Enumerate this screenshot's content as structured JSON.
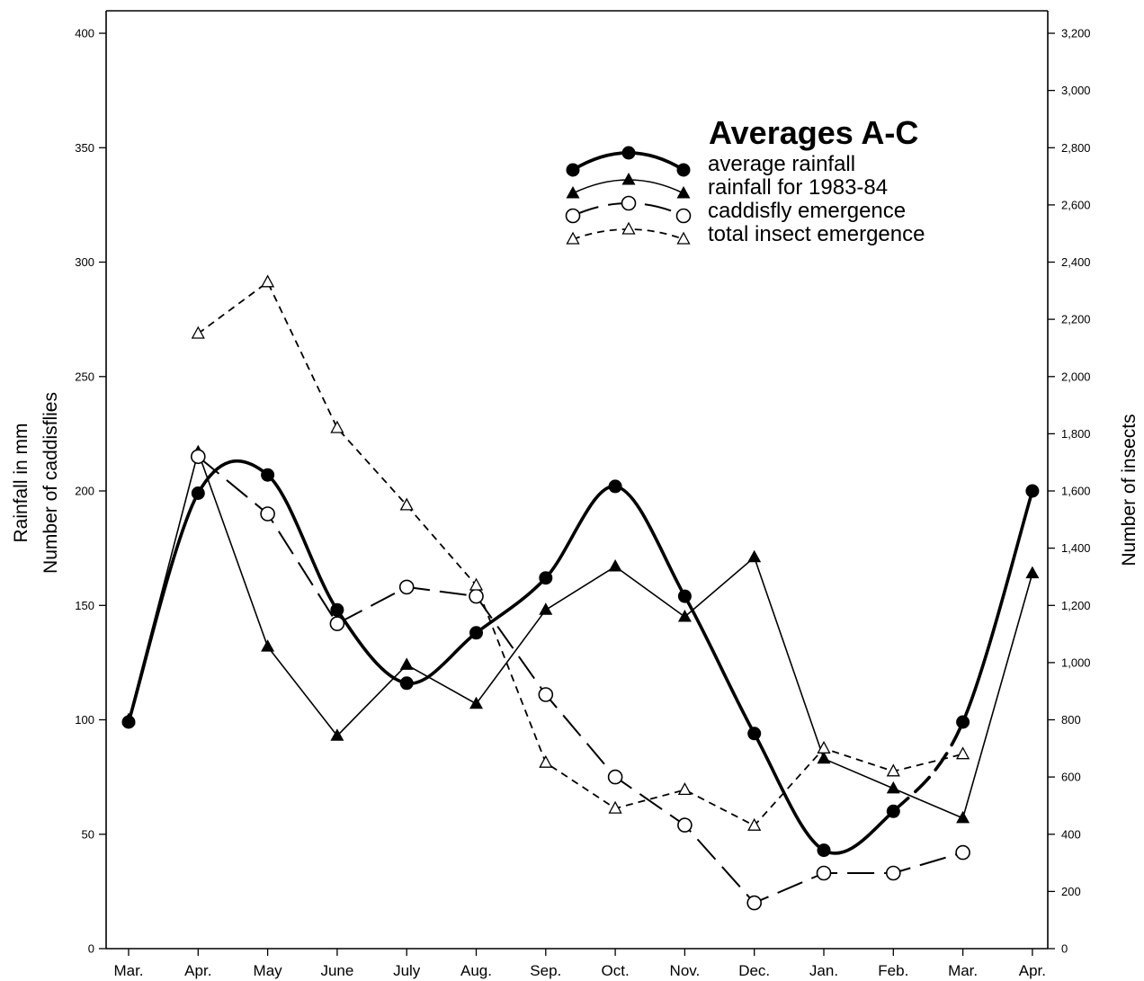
{
  "chart_data": {
    "type": "line",
    "title": "Averages A-C",
    "categories": [
      "Mar.",
      "Apr.",
      "May",
      "June",
      "July",
      "Aug.",
      "Sep.",
      "Oct.",
      "Nov.",
      "Dec.",
      "Jan.",
      "Feb.",
      "Mar.",
      "Apr."
    ],
    "y_left": {
      "labels": [
        "Rainfall in mm",
        "Number of caddisflies"
      ],
      "range": [
        0,
        400
      ],
      "ticks": [
        0,
        50,
        100,
        150,
        200,
        250,
        300,
        350,
        400
      ],
      "tick_labels": [
        "0",
        "50",
        "100",
        "150",
        "200",
        "250",
        "300",
        "350",
        "400"
      ]
    },
    "y_right": {
      "label": "Number of insects",
      "range": [
        0,
        3200
      ],
      "ticks": [
        0,
        200,
        400,
        600,
        800,
        1000,
        1200,
        1400,
        1600,
        1800,
        2000,
        2200,
        2400,
        2600,
        2800,
        3000,
        3200
      ],
      "tick_labels": [
        "0",
        "200",
        "400",
        "600",
        "800",
        "1,000",
        "1,200",
        "1,400",
        "1,600",
        "1,800",
        "2,000",
        "2,200",
        "2,400",
        "2,600",
        "2,800",
        "3,000",
        "3,200"
      ]
    },
    "grid": false,
    "legend": {
      "position": "upper-right"
    },
    "series": [
      {
        "name": "average rainfall",
        "axis": "left",
        "marker": "filled-circle",
        "values": [
          99,
          199,
          207,
          148,
          116,
          138,
          162,
          202,
          154,
          94,
          43,
          60,
          99,
          200
        ]
      },
      {
        "name": "rainfall for 1983-84",
        "axis": "left",
        "marker": "filled-triangle",
        "values": [
          100,
          217,
          132,
          93,
          124,
          107,
          148,
          167,
          145,
          171,
          83,
          70,
          57,
          164
        ]
      },
      {
        "name": "caddisfly emergence",
        "axis": "left",
        "marker": "open-circle",
        "values": [
          null,
          215,
          190,
          142,
          158,
          154,
          111,
          75,
          54,
          20,
          33,
          33,
          42,
          null
        ]
      },
      {
        "name": "total insect emergence",
        "axis": "right",
        "marker": "open-triangle",
        "values": [
          null,
          2150,
          2330,
          1820,
          1550,
          1270,
          650,
          490,
          555,
          430,
          700,
          620,
          680,
          null
        ]
      }
    ]
  }
}
